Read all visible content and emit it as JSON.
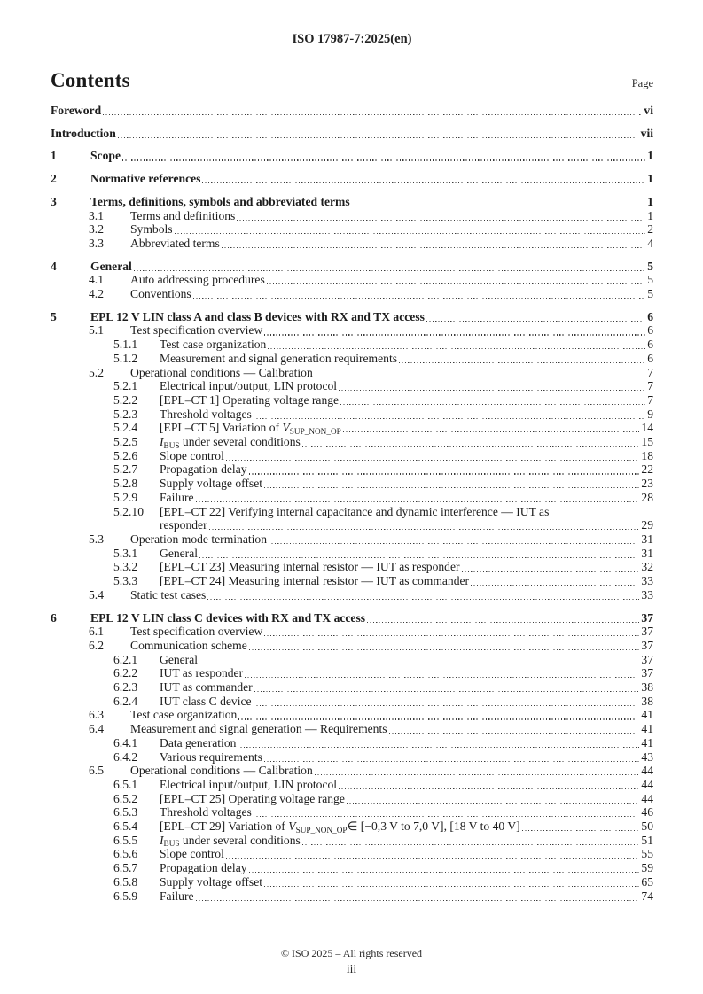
{
  "header": {
    "reference": "ISO 17987-7:2025(en)"
  },
  "heading": {
    "title": "Contents",
    "page_label": "Page"
  },
  "toc": {
    "entries": [
      {
        "level": 0,
        "num": "",
        "title": "Foreword",
        "page": "vi"
      },
      {
        "level": 0,
        "num": "",
        "title": "Introduction",
        "page": "vii"
      },
      {
        "level": 1,
        "num": "1",
        "title": "Scope",
        "page": "1"
      },
      {
        "level": 1,
        "num": "2",
        "title": "Normative references",
        "page": "1"
      },
      {
        "level": 1,
        "num": "3",
        "title": "Terms, definitions, symbols and abbreviated terms",
        "page": "1"
      },
      {
        "level": 2,
        "num": "3.1",
        "title": "Terms and definitions",
        "page": "1"
      },
      {
        "level": 2,
        "num": "3.2",
        "title": "Symbols",
        "page": "2"
      },
      {
        "level": 2,
        "num": "3.3",
        "title": "Abbreviated terms",
        "page": "4"
      },
      {
        "level": 1,
        "num": "4",
        "title": "General",
        "page": "5"
      },
      {
        "level": 2,
        "num": "4.1",
        "title": "Auto addressing procedures",
        "page": "5"
      },
      {
        "level": 2,
        "num": "4.2",
        "title": "Conventions",
        "page": "5"
      },
      {
        "level": 1,
        "num": "5",
        "title": "EPL 12 V LIN class A and class B devices with RX and TX access",
        "page": "6"
      },
      {
        "level": 2,
        "num": "5.1",
        "title": "Test specification overview",
        "page": "6"
      },
      {
        "level": 3,
        "num": "5.1.1",
        "title": "Test case organization",
        "page": "6"
      },
      {
        "level": 3,
        "num": "5.1.2",
        "title": "Measurement and signal generation requirements",
        "page": "6"
      },
      {
        "level": 2,
        "num": "5.2",
        "title": "Operational conditions — Calibration",
        "page": "7"
      },
      {
        "level": 3,
        "num": "5.2.1",
        "title": "Electrical input/output, LIN protocol",
        "page": "7"
      },
      {
        "level": 3,
        "num": "5.2.2",
        "title": "[EPL–CT 1] Operating voltage range",
        "page": "7"
      },
      {
        "level": 3,
        "num": "5.2.3",
        "title": "Threshold voltages",
        "page": "9"
      },
      {
        "level": 3,
        "num": "5.2.4",
        "title": [
          {
            "t": "[EPL–CT 5] Variation of "
          },
          {
            "t": "V",
            "style": "italic"
          },
          {
            "t": "SUP_NON_OP",
            "style": "sub"
          }
        ],
        "page": "14"
      },
      {
        "level": 3,
        "num": "5.2.5",
        "title": [
          {
            "t": "I",
            "style": "italic"
          },
          {
            "t": "BUS",
            "style": "sub"
          },
          {
            "t": " under several conditions"
          }
        ],
        "page": "15"
      },
      {
        "level": 3,
        "num": "5.2.6",
        "title": "Slope control",
        "page": "18"
      },
      {
        "level": 3,
        "num": "5.2.7",
        "title": "Propagation delay",
        "page": "22"
      },
      {
        "level": 3,
        "num": "5.2.8",
        "title": "Supply voltage offset",
        "page": "23"
      },
      {
        "level": 3,
        "num": "5.2.9",
        "title": "Failure",
        "page": "28"
      },
      {
        "level": 3,
        "num": "5.2.10",
        "title": "[EPL–CT 22] Verifying internal capacitance and dynamic interference — IUT as",
        "title_cont": "responder",
        "page": "29"
      },
      {
        "level": 2,
        "num": "5.3",
        "title": "Operation mode termination",
        "page": "31"
      },
      {
        "level": 3,
        "num": "5.3.1",
        "title": "General",
        "page": "31"
      },
      {
        "level": 3,
        "num": "5.3.2",
        "title": "[EPL–CT 23] Measuring internal resistor — IUT as responder",
        "page": "32"
      },
      {
        "level": 3,
        "num": "5.3.3",
        "title": "[EPL–CT 24] Measuring internal resistor — IUT as commander",
        "page": "33"
      },
      {
        "level": 2,
        "num": "5.4",
        "title": "Static test cases",
        "page": "33"
      },
      {
        "level": 1,
        "num": "6",
        "title": "EPL 12 V LIN class C devices with RX and TX access",
        "page": "37"
      },
      {
        "level": 2,
        "num": "6.1",
        "title": "Test specification overview",
        "page": "37"
      },
      {
        "level": 2,
        "num": "6.2",
        "title": "Communication scheme",
        "page": "37"
      },
      {
        "level": 3,
        "num": "6.2.1",
        "title": "General",
        "page": "37"
      },
      {
        "level": 3,
        "num": "6.2.2",
        "title": "IUT as responder",
        "page": "37"
      },
      {
        "level": 3,
        "num": "6.2.3",
        "title": "IUT as commander",
        "page": "38"
      },
      {
        "level": 3,
        "num": "6.2.4",
        "title": "IUT class C device",
        "page": "38"
      },
      {
        "level": 2,
        "num": "6.3",
        "title": "Test case organization",
        "page": "41"
      },
      {
        "level": 2,
        "num": "6.4",
        "title": "Measurement and signal generation — Requirements",
        "page": "41"
      },
      {
        "level": 3,
        "num": "6.4.1",
        "title": "Data generation",
        "page": "41"
      },
      {
        "level": 3,
        "num": "6.4.2",
        "title": "Various requirements",
        "page": "43"
      },
      {
        "level": 2,
        "num": "6.5",
        "title": "Operational conditions — Calibration",
        "page": "44"
      },
      {
        "level": 3,
        "num": "6.5.1",
        "title": "Electrical input/output, LIN protocol",
        "page": "44"
      },
      {
        "level": 3,
        "num": "6.5.2",
        "title": "[EPL–CT 25] Operating voltage range",
        "page": "44"
      },
      {
        "level": 3,
        "num": "6.5.3",
        "title": "Threshold voltages",
        "page": "46"
      },
      {
        "level": 3,
        "num": "6.5.4",
        "title": [
          {
            "t": "[EPL–CT 29] Variation of "
          },
          {
            "t": "V",
            "style": "italic"
          },
          {
            "t": "SUP_NON_OP",
            "style": "sub"
          },
          {
            "t": "∈ [−0,3 V to 7,0 V], [18 V to 40 V]"
          }
        ],
        "page": "50"
      },
      {
        "level": 3,
        "num": "6.5.5",
        "title": [
          {
            "t": "I",
            "style": "italic"
          },
          {
            "t": "BUS",
            "style": "sub"
          },
          {
            "t": " under several conditions"
          }
        ],
        "page": "51"
      },
      {
        "level": 3,
        "num": "6.5.6",
        "title": "Slope control",
        "page": "55"
      },
      {
        "level": 3,
        "num": "6.5.7",
        "title": "Propagation delay",
        "page": "59"
      },
      {
        "level": 3,
        "num": "6.5.8",
        "title": "Supply voltage offset",
        "page": "65"
      },
      {
        "level": 3,
        "num": "6.5.9",
        "title": "Failure",
        "page": "74"
      }
    ]
  },
  "footer": {
    "copyright": "© ISO 2025 – All rights reserved",
    "page_number": "iii"
  }
}
